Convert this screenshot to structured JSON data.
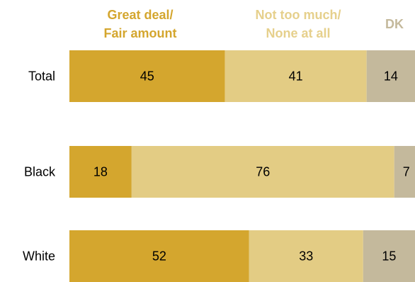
{
  "chart_data": {
    "type": "bar",
    "orientation": "horizontal",
    "stacked": true,
    "categories": [
      "Total",
      "Black",
      "White"
    ],
    "series": [
      {
        "name": "Great deal/ Fair amount",
        "name_lines": [
          "Great deal/",
          "Fair amount"
        ],
        "values": [
          45,
          18,
          52
        ],
        "color": "#d4a62e",
        "legend_color": "#d4a62e"
      },
      {
        "name": "Not too much/ None at all",
        "name_lines": [
          "Not too much/",
          "None at all"
        ],
        "values": [
          41,
          76,
          33
        ],
        "color": "#e3cc84",
        "legend_color": "#e6d08c"
      },
      {
        "name": "DK",
        "name_lines": [
          "DK"
        ],
        "values": [
          14,
          7,
          15
        ],
        "color": "#c4b99c",
        "legend_color": "#c4b99c"
      }
    ],
    "data_labels": [
      [
        "45",
        "41",
        "14"
      ],
      [
        "18",
        "76",
        "7"
      ],
      [
        "52",
        "33",
        "15"
      ]
    ],
    "xlim": [
      0,
      100
    ],
    "grid": false,
    "legend": "top"
  }
}
